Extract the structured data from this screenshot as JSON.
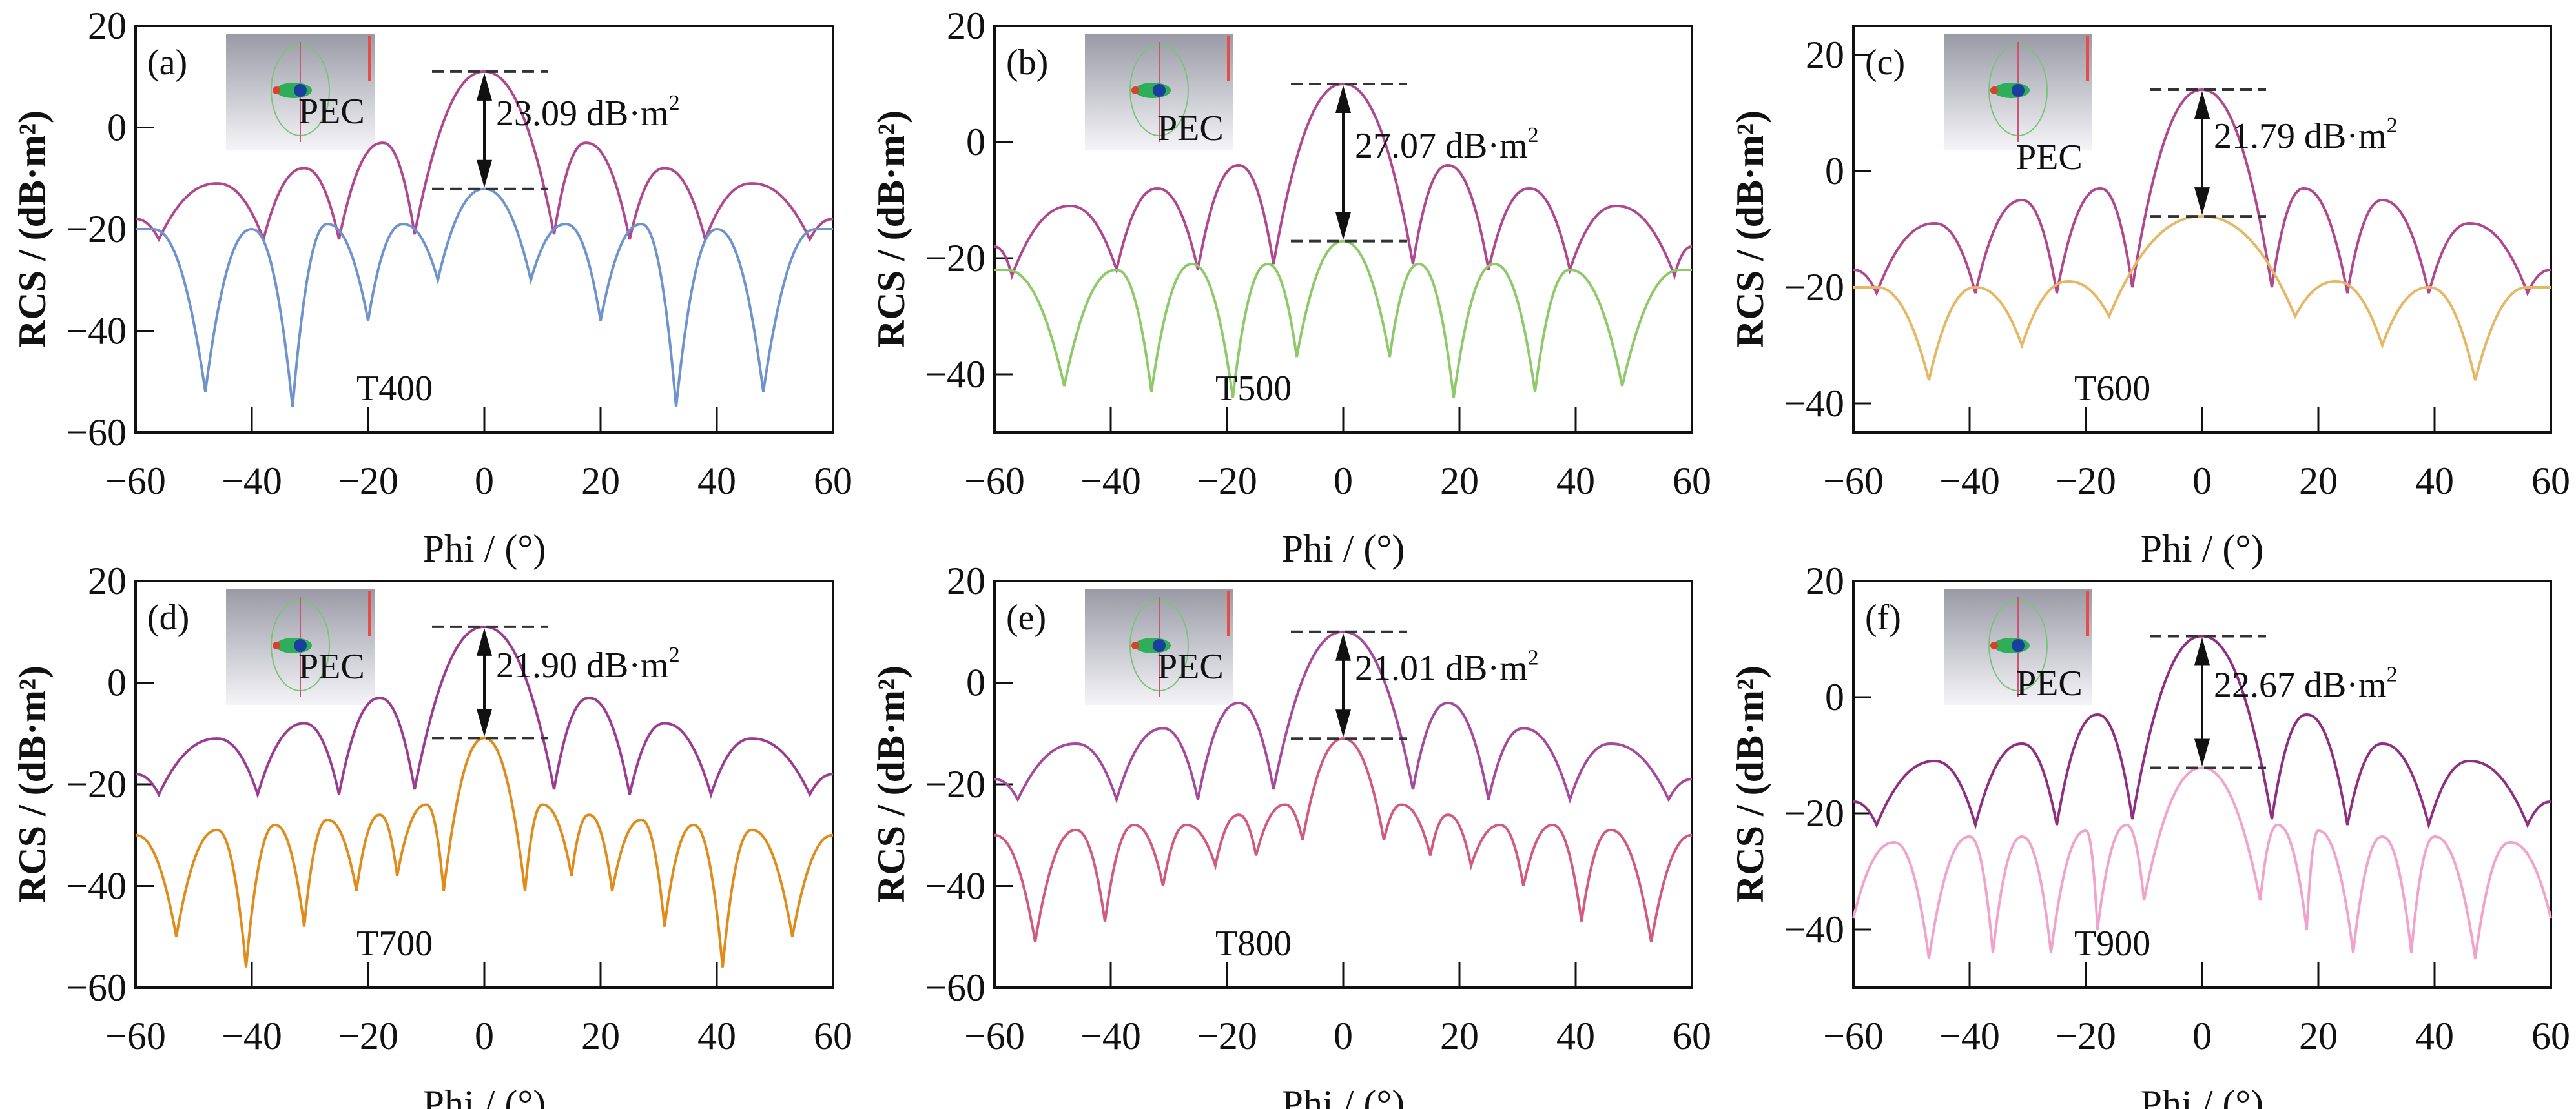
{
  "figure": {
    "caption": "",
    "panels_count": 6
  },
  "chart_data": [
    {
      "type": "line",
      "panel_label": "(a)",
      "xlabel": "Phi / (°)",
      "ylabel": "RCS / (dB·m²)",
      "xlim": [
        -60,
        60
      ],
      "ylim": [
        -60,
        20
      ],
      "xticks": [
        -60,
        -40,
        -20,
        0,
        20,
        40,
        60
      ],
      "yticks": [
        -60,
        -40,
        -20,
        0,
        20
      ],
      "grid": false,
      "annotation": {
        "text": "23.09 dB·m",
        "superscript": "2",
        "x": 0,
        "y_top": 11,
        "y_bottom": -12.09
      },
      "series": [
        {
          "name": "PEC",
          "color": "#b0488f",
          "main_peak": 11,
          "sidelobe_peaks": [
            -3,
            -8,
            -11
          ],
          "sidelobe_x": [
            17.5,
            31,
            46
          ],
          "nulls_x": [
            12,
            25,
            38,
            56
          ],
          "nulls_y": [
            -21,
            -22,
            -22,
            -22
          ],
          "edge_y": -18
        },
        {
          "name": "T400",
          "color": "#6f94cc",
          "main_peak": -12.09,
          "sidelobe_peaks": [
            -19,
            -19,
            -20,
            -20
          ],
          "sidelobe_x": [
            14,
            27,
            40,
            57
          ],
          "nulls_x": [
            8,
            20,
            33,
            48
          ],
          "nulls_y": [
            -30,
            -38,
            -55,
            -52
          ],
          "edge_y": -20
        }
      ]
    },
    {
      "type": "line",
      "panel_label": "(b)",
      "xlabel": "Phi / (°)",
      "ylabel": "RCS / (dB·m²)",
      "xlim": [
        -60,
        60
      ],
      "ylim": [
        -50,
        20
      ],
      "xticks": [
        -60,
        -40,
        -20,
        0,
        20,
        40,
        60
      ],
      "yticks": [
        -40,
        -20,
        0,
        20
      ],
      "grid": false,
      "annotation": {
        "text": "27.07 dB·m",
        "superscript": "2",
        "x": 0,
        "y_top": 10,
        "y_bottom": -17.07
      },
      "series": [
        {
          "name": "PEC",
          "color": "#b0488f",
          "main_peak": 10,
          "sidelobe_peaks": [
            -4,
            -8,
            -11
          ],
          "sidelobe_x": [
            18,
            32,
            47
          ],
          "nulls_x": [
            12,
            25,
            39,
            57
          ],
          "nulls_y": [
            -21,
            -22,
            -22,
            -23
          ],
          "edge_y": -18
        },
        {
          "name": "T500",
          "color": "#8fca6a",
          "main_peak": -17.07,
          "sidelobe_peaks": [
            -21,
            -21,
            -22,
            -22
          ],
          "sidelobe_x": [
            13,
            26,
            39,
            58
          ],
          "nulls_x": [
            8,
            19,
            33,
            48
          ],
          "nulls_y": [
            -37,
            -44,
            -43,
            -42
          ],
          "edge_y": -22
        }
      ]
    },
    {
      "type": "line",
      "panel_label": "(c)",
      "xlabel": "Phi / (°)",
      "ylabel": "RCS / (dB·m²)",
      "xlim": [
        -60,
        60
      ],
      "ylim": [
        -45,
        25
      ],
      "xticks": [
        -60,
        -40,
        -20,
        0,
        20,
        40,
        60
      ],
      "yticks": [
        -40,
        -20,
        0,
        20
      ],
      "grid": false,
      "annotation": {
        "text": "21.79 dB·m",
        "superscript": "2",
        "x": 0,
        "y_top": 14,
        "y_bottom": -7.79
      },
      "series": [
        {
          "name": "PEC",
          "color": "#b0488f",
          "main_peak": 14,
          "sidelobe_peaks": [
            -3,
            -5,
            -9
          ],
          "sidelobe_x": [
            17.5,
            31,
            46
          ],
          "nulls_x": [
            12,
            25,
            39,
            56
          ],
          "nulls_y": [
            -20,
            -21,
            -21,
            -21
          ],
          "edge_y": -17
        },
        {
          "name": "T600",
          "color": "#e6b866",
          "main_peak": -7.79,
          "sidelobe_peaks": [
            -19,
            -20,
            -20
          ],
          "sidelobe_x": [
            23,
            39,
            56
          ],
          "nulls_x": [
            16,
            31,
            47
          ],
          "nulls_y": [
            -25,
            -30,
            -36
          ],
          "edge_y": -20
        }
      ]
    },
    {
      "type": "line",
      "panel_label": "(d)",
      "xlabel": "Phi / (°)",
      "ylabel": "RCS / (dB·m²)",
      "xlim": [
        -60,
        60
      ],
      "ylim": [
        -60,
        20
      ],
      "xticks": [
        -60,
        -40,
        -20,
        0,
        20,
        40,
        60
      ],
      "yticks": [
        -60,
        -40,
        -20,
        0,
        20
      ],
      "grid": false,
      "annotation": {
        "text": "21.90 dB·m",
        "superscript": "2",
        "x": 0,
        "y_top": 11,
        "y_bottom": -10.9
      },
      "series": [
        {
          "name": "PEC",
          "color": "#9b3c93",
          "main_peak": 11,
          "sidelobe_peaks": [
            -3,
            -8,
            -11
          ],
          "sidelobe_x": [
            18,
            31,
            46
          ],
          "nulls_x": [
            12,
            25,
            39,
            56
          ],
          "nulls_y": [
            -21,
            -22,
            -22,
            -22
          ],
          "edge_y": -18
        },
        {
          "name": "T700",
          "color": "#df8c1c",
          "main_peak": -10.9,
          "sidelobe_peaks": [
            -24,
            -26,
            -27,
            -28,
            -29
          ],
          "sidelobe_x": [
            10,
            18,
            27,
            36,
            46
          ],
          "nulls_x": [
            7,
            15,
            22,
            31,
            41,
            53
          ],
          "nulls_y": [
            -41,
            -38,
            -41,
            -48,
            -56,
            -50
          ],
          "edge_y": -30
        }
      ]
    },
    {
      "type": "line",
      "panel_label": "(e)",
      "xlabel": "Phi / (°)",
      "ylabel": "RCS / (dB·m²)",
      "xlim": [
        -60,
        60
      ],
      "ylim": [
        -60,
        20
      ],
      "xticks": [
        -60,
        -40,
        -20,
        0,
        20,
        40,
        60
      ],
      "yticks": [
        -60,
        -40,
        -20,
        0,
        20
      ],
      "grid": false,
      "annotation": {
        "text": "21.01 dB·m",
        "superscript": "2",
        "x": 0,
        "y_top": 10,
        "y_bottom": -11.01
      },
      "series": [
        {
          "name": "PEC",
          "color": "#a64a9c",
          "main_peak": 10,
          "sidelobe_peaks": [
            -4,
            -9,
            -12
          ],
          "sidelobe_x": [
            18,
            31,
            46
          ],
          "nulls_x": [
            12,
            25,
            39,
            56
          ],
          "nulls_y": [
            -21,
            -23,
            -23,
            -23
          ],
          "edge_y": -19
        },
        {
          "name": "T800",
          "color": "#d15a7e",
          "main_peak": -11.01,
          "sidelobe_peaks": [
            -24,
            -26,
            -28,
            -28,
            -29
          ],
          "sidelobe_x": [
            10,
            18,
            27,
            36,
            46
          ],
          "nulls_x": [
            7,
            15,
            22,
            31,
            41,
            53
          ],
          "nulls_y": [
            -31,
            -34,
            -36,
            -40,
            -47,
            -51
          ],
          "edge_y": -30
        }
      ]
    },
    {
      "type": "line",
      "panel_label": "(f)",
      "xlabel": "Phi / (°)",
      "ylabel": "RCS / (dB·m²)",
      "xlim": [
        -60,
        60
      ],
      "ylim": [
        -50,
        20
      ],
      "xticks": [
        -60,
        -40,
        -20,
        0,
        20,
        40,
        60
      ],
      "yticks": [
        -40,
        -20,
        0,
        20
      ],
      "grid": false,
      "annotation": {
        "text": "22.67 dB·m",
        "superscript": "2",
        "x": 0,
        "y_top": 10.5,
        "y_bottom": -12.17
      },
      "series": [
        {
          "name": "PEC",
          "color": "#8e2f82",
          "main_peak": 10.5,
          "sidelobe_peaks": [
            -3,
            -8,
            -11
          ],
          "sidelobe_x": [
            18,
            31,
            46
          ],
          "nulls_x": [
            12,
            25,
            39,
            56
          ],
          "nulls_y": [
            -21,
            -22,
            -22,
            -22
          ],
          "edge_y": -18
        },
        {
          "name": "T900",
          "color": "#f0a3cc",
          "main_peak": -12.17,
          "sidelobe_peaks": [
            -22,
            -23,
            -24,
            -24,
            -25
          ],
          "sidelobe_x": [
            13,
            20,
            31,
            40,
            53
          ],
          "nulls_x": [
            10,
            18,
            26,
            36,
            47
          ],
          "nulls_y": [
            -35,
            -40,
            -44,
            -44,
            -45
          ],
          "edge_y": -38
        }
      ]
    }
  ]
}
